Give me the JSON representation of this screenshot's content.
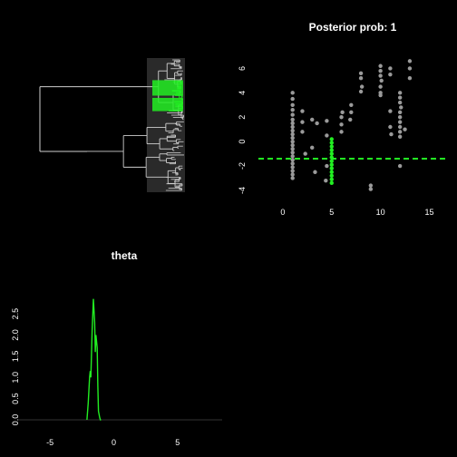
{
  "colors": {
    "background": "#000000",
    "foreground": "#ffffff",
    "highlight": "#22ee22",
    "tree": "#cfcfcf",
    "points": "#9a9a9a"
  },
  "chart_data": [
    {
      "type": "dendrogram",
      "title": "",
      "highlight_color": "#22ee22",
      "tip_count": 60,
      "highlighted_clade": "upper-middle"
    },
    {
      "type": "scatter",
      "title": "Posterior prob: 1",
      "xlabel": "",
      "ylabel": "",
      "xlim": [
        -2.5,
        17
      ],
      "ylim": [
        -4.6,
        7
      ],
      "x_ticks": [
        "0",
        "5",
        "10",
        "15"
      ],
      "y_ticks": [
        "6",
        "4",
        "2",
        "0",
        "-2",
        "-4"
      ],
      "threshold_line": {
        "y": -1.4,
        "color": "#22ee22",
        "style": "dashed"
      },
      "series": [
        {
          "color": "#9a9a9a",
          "points": [
            [
              1,
              4
            ],
            [
              1,
              3.5
            ],
            [
              1,
              3
            ],
            [
              1,
              2.6
            ],
            [
              1,
              2.2
            ],
            [
              1,
              1.8
            ],
            [
              1,
              1.5
            ],
            [
              1,
              1.2
            ],
            [
              1,
              0.9
            ],
            [
              1,
              0.6
            ],
            [
              1,
              0.3
            ],
            [
              1,
              0
            ],
            [
              1,
              -0.3
            ],
            [
              1,
              -0.6
            ],
            [
              1,
              -0.9
            ],
            [
              1,
              -1.2
            ],
            [
              1,
              -1.5
            ],
            [
              1,
              -1.8
            ],
            [
              1,
              -2.1
            ],
            [
              1,
              -2.4
            ],
            [
              1,
              -2.7
            ],
            [
              1,
              -3
            ],
            [
              2,
              2.5
            ],
            [
              2,
              1.6
            ],
            [
              2,
              0.8
            ],
            [
              2.3,
              -1
            ],
            [
              3,
              1.8
            ],
            [
              3,
              -0.5
            ],
            [
              3.5,
              1.5
            ],
            [
              3.3,
              -2.5
            ],
            [
              4.5,
              1.7
            ],
            [
              4.5,
              0.5
            ],
            [
              4.5,
              -2
            ],
            [
              4.4,
              -3.2
            ],
            [
              6,
              2
            ],
            [
              6,
              1.4
            ],
            [
              6,
              0.8
            ],
            [
              6.1,
              2.4
            ],
            [
              7,
              3
            ],
            [
              7,
              2.4
            ],
            [
              6.9,
              1.8
            ],
            [
              8,
              5.6
            ],
            [
              8,
              5.2
            ],
            [
              8.1,
              4.5
            ],
            [
              8,
              4.1
            ],
            [
              10,
              6.2
            ],
            [
              10,
              5.8
            ],
            [
              10,
              5.4
            ],
            [
              10.1,
              5
            ],
            [
              10,
              4.5
            ],
            [
              10,
              4
            ],
            [
              10,
              3.8
            ],
            [
              11,
              6
            ],
            [
              11,
              5.5
            ],
            [
              11,
              2.5
            ],
            [
              11,
              1.2
            ],
            [
              11.1,
              0.6
            ],
            [
              12,
              4
            ],
            [
              12,
              3.6
            ],
            [
              12,
              3.2
            ],
            [
              12.1,
              2.8
            ],
            [
              12,
              2.4
            ],
            [
              12,
              2
            ],
            [
              12,
              1.6
            ],
            [
              12,
              1.2
            ],
            [
              12,
              0.8
            ],
            [
              12,
              0.4
            ],
            [
              12,
              -2
            ],
            [
              12.5,
              1
            ],
            [
              13,
              6.6
            ],
            [
              13,
              6
            ],
            [
              13,
              5.2
            ],
            [
              9,
              -3.6
            ],
            [
              9,
              -3.9
            ]
          ]
        },
        {
          "color": "#22ee22",
          "points": [
            [
              5,
              0.2
            ],
            [
              5,
              -0.1
            ],
            [
              5,
              -0.4
            ],
            [
              5,
              -0.7
            ],
            [
              5,
              -1
            ],
            [
              5,
              -1.3
            ],
            [
              5,
              -1.6
            ],
            [
              5,
              -1.9
            ],
            [
              5,
              -2.2
            ],
            [
              5,
              -2.5
            ],
            [
              5,
              -2.8
            ],
            [
              5,
              -3.1
            ],
            [
              5,
              -3.4
            ]
          ]
        }
      ]
    },
    {
      "type": "line",
      "title": "theta",
      "xlabel": "",
      "ylabel": "",
      "xlim": [
        -7.5,
        8.5
      ],
      "ylim": [
        0,
        3.1
      ],
      "x_ticks": [
        "-5",
        "0",
        "5"
      ],
      "y_ticks": [
        "0.0",
        "0.5",
        "1.0",
        "1.5",
        "2.0",
        "2.5"
      ],
      "series": [
        {
          "color": "#22ee22",
          "x": [
            -2.1,
            -2.0,
            -1.9,
            -1.85,
            -1.8,
            -1.7,
            -1.6,
            -1.5,
            -1.45,
            -1.4,
            -1.3,
            -1.25,
            -1.2,
            -1.1,
            -1.05,
            -1.0
          ],
          "values": [
            0,
            0.4,
            1.0,
            1.15,
            1.0,
            2.1,
            2.85,
            2.3,
            1.6,
            2.0,
            1.7,
            0.8,
            0.2,
            0.05,
            0,
            0
          ]
        }
      ]
    }
  ]
}
